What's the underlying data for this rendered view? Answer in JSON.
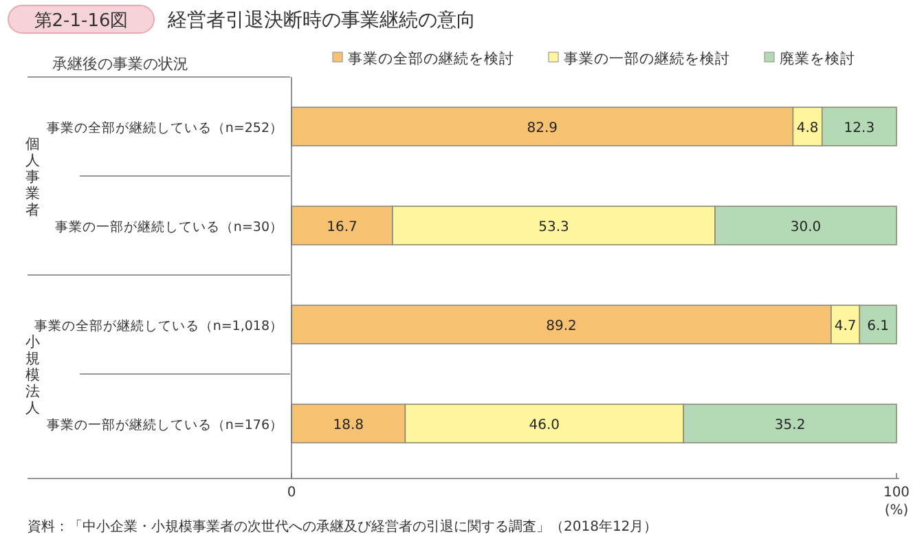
{
  "chart_data": {
    "type": "bar",
    "orientation": "horizontal",
    "stacked": true,
    "subtitle": "第2-1-16図",
    "title": "経営者引退決断時の事業継続の意向",
    "ylabel": "承継後の事業の状況",
    "xlabel": "(%)",
    "categories": [
      "事業の全部が継続している（n=252）",
      "事業の一部が継続している（n=30）",
      "事業の全部が継続している（n=1,018）",
      "事業の一部が継続している（n=176）"
    ],
    "series": [
      {
        "name": "事業の全部の継続を検討",
        "color": "#f7c172",
        "values": [
          82.9,
          16.7,
          89.2,
          18.8
        ],
        "value_labels": [
          "82.9",
          "16.7",
          "89.2",
          "18.8"
        ]
      },
      {
        "name": "事業の一部の継続を検討",
        "color": "#fff59c",
        "values": [
          4.8,
          53.3,
          4.7,
          46.0
        ],
        "value_labels": [
          "4.8",
          "53.3",
          "4.7",
          "46.0"
        ]
      },
      {
        "name": "廃業を検討",
        "color": "#b3d9b5",
        "values": [
          12.3,
          30.0,
          6.1,
          35.2
        ],
        "value_labels": [
          "12.3",
          "30.0",
          "6.1",
          "35.2"
        ]
      }
    ],
    "xlim": [
      0,
      100
    ],
    "xticks": [
      0,
      100
    ],
    "legend": "top",
    "annotations": [
      "個人事業者",
      "小規模法人",
      "資料：「中小企業・小規模事業者の次世代への承継及び経営者の引退に関する調査」（2018年12月）"
    ]
  }
}
